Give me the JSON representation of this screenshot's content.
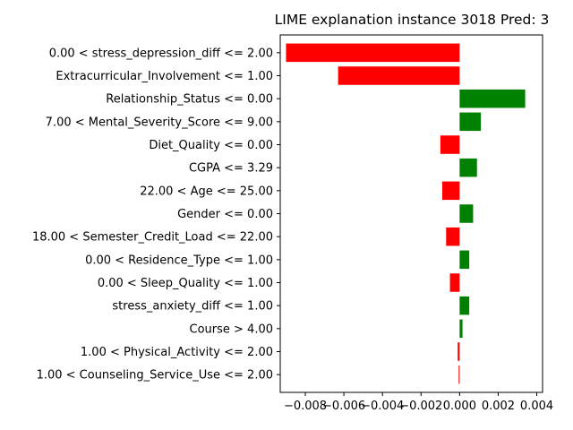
{
  "chart_data": {
    "type": "bar",
    "orientation": "horizontal",
    "title": "LIME explanation instance 3018 Pred: 3",
    "xlabel": "",
    "ylabel": "",
    "xlim": [
      -0.0093,
      0.0043
    ],
    "xticks": [
      -0.008,
      -0.006,
      -0.004,
      -0.002,
      0.0,
      0.002,
      0.004
    ],
    "xtick_labels": [
      "−0.008",
      "−0.006",
      "−0.004",
      "−0.002",
      "0.000",
      "0.002",
      "0.004"
    ],
    "grid": false,
    "legend": "none",
    "colors": {
      "positive": "#008000",
      "negative": "#ff0000"
    },
    "categories": [
      "0.00 < stress_depression_diff <= 2.00",
      "Extracurricular_Involvement <= 1.00",
      "Relationship_Status <= 0.00",
      "7.00 < Mental_Severity_Score <= 9.00",
      "Diet_Quality <= 0.00",
      "CGPA <= 3.29",
      "22.00 < Age <= 25.00",
      "Gender <= 0.00",
      "18.00 < Semester_Credit_Load <= 22.00",
      "0.00 < Residence_Type <= 1.00",
      "0.00 < Sleep_Quality <= 1.00",
      "stress_anxiety_diff <= 1.00",
      "Course > 4.00",
      "1.00 < Physical_Activity <= 2.00",
      "1.00 < Counseling_Service_Use <= 2.00"
    ],
    "values": [
      -0.009,
      -0.0063,
      0.0034,
      0.0011,
      -0.001,
      0.0009,
      -0.0009,
      0.0007,
      -0.0007,
      0.0005,
      -0.0005,
      0.0005,
      0.00015,
      -0.0001,
      -5e-05
    ]
  }
}
